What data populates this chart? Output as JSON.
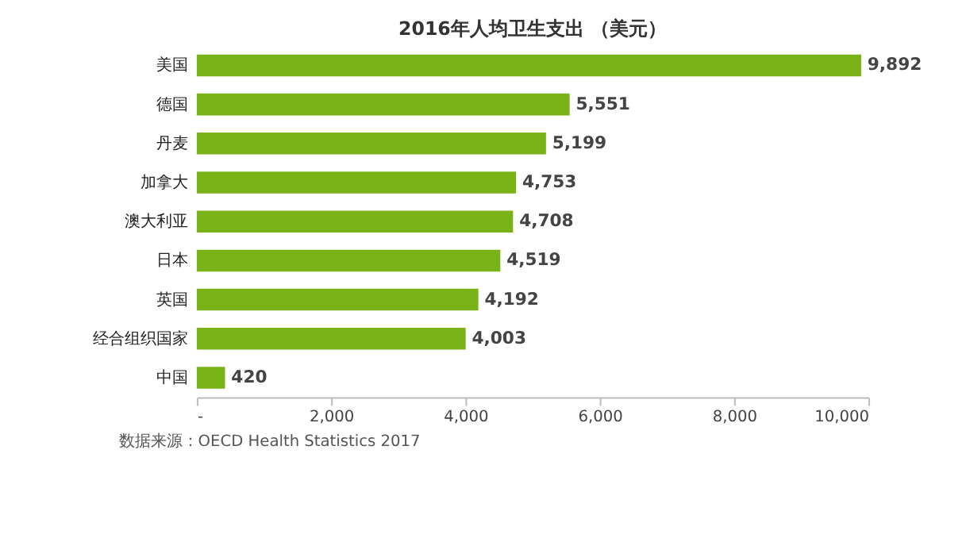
{
  "chart_data": {
    "type": "bar",
    "orientation": "horizontal",
    "title": "2016年人均卫生支出 （美元）",
    "categories": [
      "美国",
      "德国",
      "丹麦",
      "加拿大",
      "澳大利亚",
      "日本",
      "英国",
      "经合组织国家",
      "中国"
    ],
    "values": [
      9892,
      5551,
      5199,
      4753,
      4708,
      4519,
      4192,
      4003,
      420
    ],
    "color": "#7ab317",
    "xlim": [
      0,
      10000
    ],
    "xticks": [
      {
        "value": 0,
        "label": "-"
      },
      {
        "value": 2000,
        "label": "2,000"
      },
      {
        "value": 4000,
        "label": "4,000"
      },
      {
        "value": 6000,
        "label": "6,000"
      },
      {
        "value": 8000,
        "label": "8,000"
      },
      {
        "value": 10000,
        "label": "10,000"
      }
    ],
    "value_labels": [
      "9,892",
      "5,551",
      "5,199",
      "4,753",
      "4,708",
      "4,519",
      "4,192",
      "4,003",
      "420"
    ],
    "grid": false,
    "annotations": [
      "数据来源：OECD Health Statistics 2017"
    ]
  }
}
